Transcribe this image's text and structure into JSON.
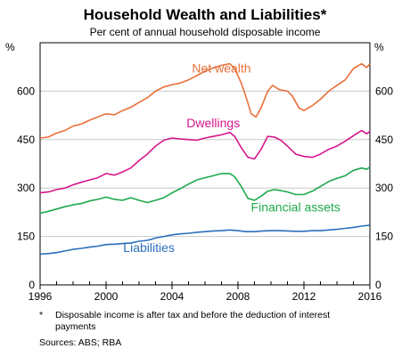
{
  "chart_data": {
    "type": "line",
    "title": "Household Wealth and Liabilities*",
    "subtitle": "Per cent of annual household disposable income",
    "y_unit_left": "%",
    "y_unit_right": "%",
    "ylim": [
      0,
      750
    ],
    "xlim": [
      1996,
      2016
    ],
    "y_ticks": [
      0,
      150,
      300,
      450,
      600
    ],
    "x_ticks": [
      1996,
      2000,
      2004,
      2008,
      2012,
      2016
    ],
    "grid": true,
    "series": [
      {
        "name": "Net wealth",
        "color": "#e8703a",
        "label_at": [
          2007,
          658
        ],
        "points": [
          [
            1996.0,
            455
          ],
          [
            1996.5,
            458
          ],
          [
            1997.0,
            470
          ],
          [
            1997.5,
            478
          ],
          [
            1998.0,
            492
          ],
          [
            1998.5,
            498
          ],
          [
            1999.0,
            510
          ],
          [
            1999.5,
            520
          ],
          [
            2000.0,
            530
          ],
          [
            2000.5,
            527
          ],
          [
            2001.0,
            540
          ],
          [
            2001.5,
            550
          ],
          [
            2002.0,
            565
          ],
          [
            2002.5,
            580
          ],
          [
            2003.0,
            600
          ],
          [
            2003.5,
            613
          ],
          [
            2004.0,
            620
          ],
          [
            2004.5,
            625
          ],
          [
            2005.0,
            635
          ],
          [
            2005.5,
            648
          ],
          [
            2006.0,
            662
          ],
          [
            2006.5,
            672
          ],
          [
            2007.0,
            680
          ],
          [
            2007.5,
            685
          ],
          [
            2007.8,
            670
          ],
          [
            2008.2,
            625
          ],
          [
            2008.5,
            580
          ],
          [
            2008.8,
            530
          ],
          [
            2009.1,
            520
          ],
          [
            2009.4,
            548
          ],
          [
            2009.8,
            600
          ],
          [
            2010.1,
            618
          ],
          [
            2010.5,
            605
          ],
          [
            2011.0,
            600
          ],
          [
            2011.3,
            585
          ],
          [
            2011.7,
            548
          ],
          [
            2012.0,
            540
          ],
          [
            2012.5,
            555
          ],
          [
            2013.0,
            575
          ],
          [
            2013.5,
            600
          ],
          [
            2014.0,
            618
          ],
          [
            2014.5,
            635
          ],
          [
            2015.0,
            670
          ],
          [
            2015.5,
            685
          ],
          [
            2015.8,
            673
          ],
          [
            2016.0,
            685
          ]
        ]
      },
      {
        "name": "Dwellings",
        "color": "#d6168b",
        "label_at": [
          2006.5,
          488
        ],
        "points": [
          [
            1996.0,
            285
          ],
          [
            1996.5,
            288
          ],
          [
            1997.0,
            295
          ],
          [
            1997.5,
            300
          ],
          [
            1998.0,
            310
          ],
          [
            1998.5,
            318
          ],
          [
            1999.0,
            325
          ],
          [
            1999.5,
            332
          ],
          [
            2000.0,
            345
          ],
          [
            2000.5,
            340
          ],
          [
            2001.0,
            350
          ],
          [
            2001.5,
            362
          ],
          [
            2002.0,
            385
          ],
          [
            2002.5,
            405
          ],
          [
            2003.0,
            430
          ],
          [
            2003.5,
            448
          ],
          [
            2004.0,
            455
          ],
          [
            2004.5,
            452
          ],
          [
            2005.0,
            450
          ],
          [
            2005.5,
            448
          ],
          [
            2006.0,
            455
          ],
          [
            2006.5,
            460
          ],
          [
            2007.0,
            465
          ],
          [
            2007.5,
            472
          ],
          [
            2007.8,
            460
          ],
          [
            2008.2,
            425
          ],
          [
            2008.6,
            395
          ],
          [
            2009.0,
            390
          ],
          [
            2009.4,
            420
          ],
          [
            2009.8,
            460
          ],
          [
            2010.2,
            458
          ],
          [
            2010.6,
            448
          ],
          [
            2011.0,
            430
          ],
          [
            2011.5,
            405
          ],
          [
            2012.0,
            398
          ],
          [
            2012.5,
            395
          ],
          [
            2013.0,
            405
          ],
          [
            2013.5,
            420
          ],
          [
            2014.0,
            430
          ],
          [
            2014.5,
            445
          ],
          [
            2015.0,
            462
          ],
          [
            2015.5,
            478
          ],
          [
            2015.8,
            468
          ],
          [
            2016.0,
            475
          ]
        ]
      },
      {
        "name": "Financial assets",
        "color": "#1ea84d",
        "label_at": [
          2011.5,
          227
        ],
        "points": [
          [
            1996.0,
            222
          ],
          [
            1996.5,
            228
          ],
          [
            1997.0,
            235
          ],
          [
            1997.5,
            242
          ],
          [
            1998.0,
            248
          ],
          [
            1998.5,
            252
          ],
          [
            1999.0,
            260
          ],
          [
            1999.5,
            265
          ],
          [
            2000.0,
            272
          ],
          [
            2000.5,
            265
          ],
          [
            2001.0,
            262
          ],
          [
            2001.5,
            270
          ],
          [
            2002.0,
            262
          ],
          [
            2002.5,
            255
          ],
          [
            2003.0,
            262
          ],
          [
            2003.5,
            270
          ],
          [
            2004.0,
            285
          ],
          [
            2004.5,
            298
          ],
          [
            2005.0,
            312
          ],
          [
            2005.5,
            325
          ],
          [
            2006.0,
            332
          ],
          [
            2006.5,
            338
          ],
          [
            2007.0,
            345
          ],
          [
            2007.5,
            345
          ],
          [
            2007.8,
            335
          ],
          [
            2008.2,
            305
          ],
          [
            2008.6,
            268
          ],
          [
            2009.0,
            262
          ],
          [
            2009.4,
            275
          ],
          [
            2009.8,
            290
          ],
          [
            2010.2,
            295
          ],
          [
            2010.6,
            292
          ],
          [
            2011.0,
            288
          ],
          [
            2011.5,
            280
          ],
          [
            2012.0,
            280
          ],
          [
            2012.5,
            290
          ],
          [
            2013.0,
            305
          ],
          [
            2013.5,
            320
          ],
          [
            2014.0,
            330
          ],
          [
            2014.5,
            338
          ],
          [
            2015.0,
            355
          ],
          [
            2015.5,
            362
          ],
          [
            2015.8,
            358
          ],
          [
            2016.0,
            365
          ]
        ]
      },
      {
        "name": "Liabilities",
        "color": "#2a6ebb",
        "label_at": [
          2002.6,
          102
        ],
        "points": [
          [
            1996.0,
            95
          ],
          [
            1996.5,
            97
          ],
          [
            1997.0,
            100
          ],
          [
            1997.5,
            105
          ],
          [
            1998.0,
            110
          ],
          [
            1998.5,
            113
          ],
          [
            1999.0,
            117
          ],
          [
            1999.5,
            120
          ],
          [
            2000.0,
            125
          ],
          [
            2000.5,
            126
          ],
          [
            2001.0,
            128
          ],
          [
            2001.5,
            130
          ],
          [
            2002.0,
            135
          ],
          [
            2002.5,
            138
          ],
          [
            2003.0,
            145
          ],
          [
            2003.5,
            150
          ],
          [
            2004.0,
            155
          ],
          [
            2004.5,
            158
          ],
          [
            2005.0,
            160
          ],
          [
            2005.5,
            163
          ],
          [
            2006.0,
            165
          ],
          [
            2006.5,
            167
          ],
          [
            2007.0,
            168
          ],
          [
            2007.5,
            170
          ],
          [
            2008.0,
            168
          ],
          [
            2008.5,
            165
          ],
          [
            2009.0,
            165
          ],
          [
            2009.5,
            167
          ],
          [
            2010.0,
            168
          ],
          [
            2010.5,
            168
          ],
          [
            2011.0,
            167
          ],
          [
            2011.5,
            166
          ],
          [
            2012.0,
            166
          ],
          [
            2012.5,
            168
          ],
          [
            2013.0,
            168
          ],
          [
            2013.5,
            170
          ],
          [
            2014.0,
            172
          ],
          [
            2014.5,
            175
          ],
          [
            2015.0,
            178
          ],
          [
            2015.5,
            182
          ],
          [
            2016.0,
            185
          ]
        ]
      }
    ]
  },
  "footnote": {
    "marker": "*",
    "line1": "Disposable income is after tax and before the deduction of interest",
    "line2": "payments"
  },
  "sources": "Sources:   ABS; RBA"
}
